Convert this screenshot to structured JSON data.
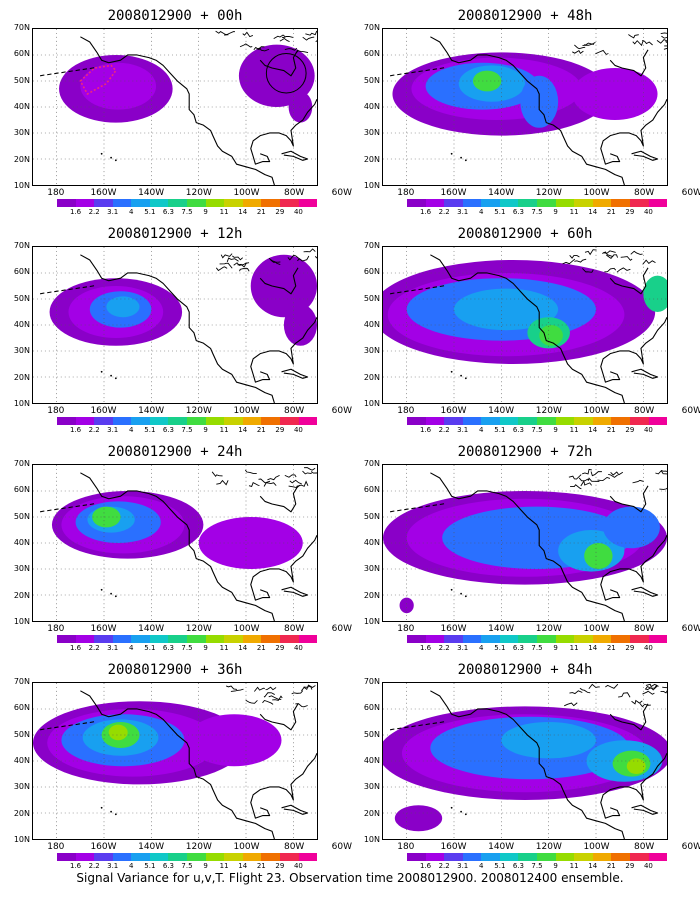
{
  "figure": {
    "caption": "Signal Variance for u,v,T. Flight 23. Observation time 2008012900. 2008012400 ensemble.",
    "lat_labels": [
      "70N",
      "60N",
      "50N",
      "40N",
      "30N",
      "20N",
      "10N"
    ],
    "lon_labels": [
      "180",
      "160W",
      "140W",
      "120W",
      "100W",
      "80W",
      "60W"
    ],
    "colorbar": {
      "levels": [
        "1.6",
        "2.2",
        "3.1",
        "4",
        "5.1",
        "6.3",
        "7.5",
        "9",
        "11",
        "14",
        "21",
        "29",
        "40"
      ],
      "colors": [
        "#8a00c8",
        "#a300e6",
        "#5a3cf0",
        "#2a70ff",
        "#18a0f0",
        "#10c8c8",
        "#18d08a",
        "#40dc40",
        "#96dc00",
        "#c8d200",
        "#f0aa00",
        "#f07000",
        "#f02850",
        "#f0009a"
      ]
    },
    "panels": [
      {
        "title": "2008012900 + 00h"
      },
      {
        "title": "2008012900 + 48h"
      },
      {
        "title": "2008012900 + 12h"
      },
      {
        "title": "2008012900 + 60h"
      },
      {
        "title": "2008012900 + 24h"
      },
      {
        "title": "2008012900 + 72h"
      },
      {
        "title": "2008012900 + 36h"
      },
      {
        "title": "2008012900 + 84h"
      }
    ]
  }
}
